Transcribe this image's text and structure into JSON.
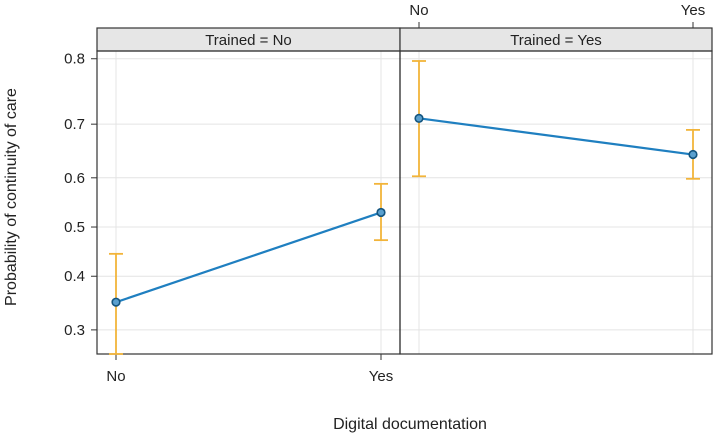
{
  "colors": {
    "line": "#1f7fc0",
    "point_fill": "#5aa0cf",
    "point_stroke": "#14557f",
    "error_bar": "#f2b43a",
    "strip_background": "#e6e6e6",
    "grid": "#e4e4e4"
  },
  "chart_data": {
    "type": "line",
    "xlabel": "Digital documentation",
    "ylabel": "Probability of continuity of care",
    "categories": [
      "No",
      "Yes"
    ],
    "y_ticks": [
      0.3,
      0.4,
      0.5,
      0.6,
      0.7,
      0.8
    ],
    "ylim": [
      0.26,
      0.81
    ],
    "y_scale": "logit",
    "grid": true,
    "panels": [
      {
        "strip": "Trained = No",
        "x_tick_side": "bottom",
        "values": [
          0.35,
          0.53
        ],
        "lower": [
          0.26,
          0.473
        ],
        "upper": [
          0.445,
          0.588
        ]
      },
      {
        "strip": "Trained = Yes",
        "x_tick_side": "top",
        "values": [
          0.71,
          0.645
        ],
        "lower": [
          0.603,
          0.598
        ],
        "upper": [
          0.797,
          0.69
        ]
      }
    ]
  }
}
